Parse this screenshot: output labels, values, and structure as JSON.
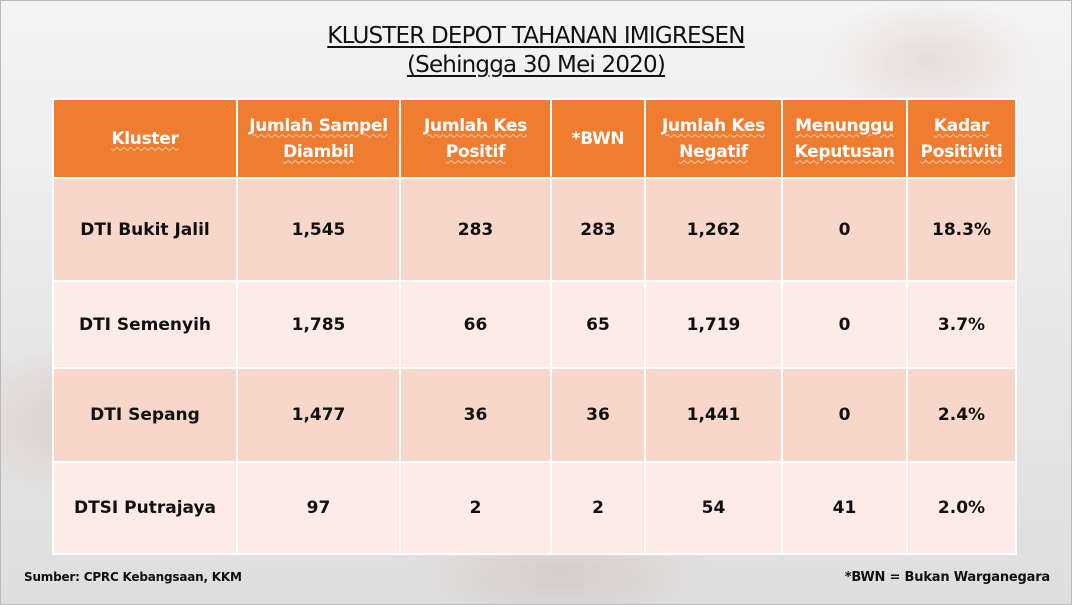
{
  "title": {
    "line1": "KLUSTER DEPOT TAHANAN IMIGRESEN",
    "line2": "(Sehingga 30 Mei 2020)"
  },
  "table": {
    "headers": [
      "Kluster",
      "Jumlah Sampel Diambil",
      "Jumlah Kes Positif",
      "*BWN",
      "Jumlah Kes Negatif",
      "Menunggu Keputusan",
      "Kadar Positiviti"
    ],
    "rows": [
      [
        "DTI Bukit Jalil",
        "1,545",
        "283",
        "283",
        "1,262",
        "0",
        "18.3%"
      ],
      [
        "DTI Semenyih",
        "1,785",
        "66",
        "65",
        "1,719",
        "0",
        "3.7%"
      ],
      [
        "DTI Sepang",
        "1,477",
        "36",
        "36",
        "1,441",
        "0",
        "2.4%"
      ],
      [
        "DTSI Putrajaya",
        "97",
        "2",
        "2",
        "54",
        "41",
        "2.0%"
      ]
    ]
  },
  "footer": {
    "source": "Sumber: CPRC Kebangsaan, KKM",
    "note": "*BWN = Bukan Warganegara"
  },
  "colors": {
    "header_bg": "#ee7d31",
    "row_odd_bg": "#f8d7cb",
    "row_even_bg": "#fcebe6"
  }
}
